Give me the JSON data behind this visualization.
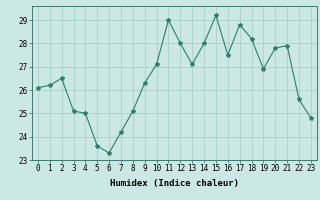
{
  "x": [
    0,
    1,
    2,
    3,
    4,
    5,
    6,
    7,
    8,
    9,
    10,
    11,
    12,
    13,
    14,
    15,
    16,
    17,
    18,
    19,
    20,
    21,
    22,
    23
  ],
  "y": [
    26.1,
    26.2,
    26.5,
    25.1,
    25.0,
    23.6,
    23.3,
    24.2,
    25.1,
    26.3,
    27.1,
    29.0,
    28.0,
    27.1,
    28.0,
    29.2,
    27.5,
    28.8,
    28.2,
    26.9,
    27.8,
    27.9,
    25.6,
    24.8
  ],
  "line_color": "#2e7d6e",
  "marker": "*",
  "marker_size": 3,
  "bg_color": "#cce8e4",
  "grid_color": "#aacfcb",
  "xlabel": "Humidex (Indice chaleur)",
  "ylabel": "",
  "xlim": [
    -0.5,
    23.5
  ],
  "ylim": [
    23,
    29.6
  ],
  "yticks": [
    23,
    24,
    25,
    26,
    27,
    28,
    29
  ],
  "xticks": [
    0,
    1,
    2,
    3,
    4,
    5,
    6,
    7,
    8,
    9,
    10,
    11,
    12,
    13,
    14,
    15,
    16,
    17,
    18,
    19,
    20,
    21,
    22,
    23
  ],
  "xlabel_fontsize": 6.5,
  "tick_fontsize": 5.5
}
